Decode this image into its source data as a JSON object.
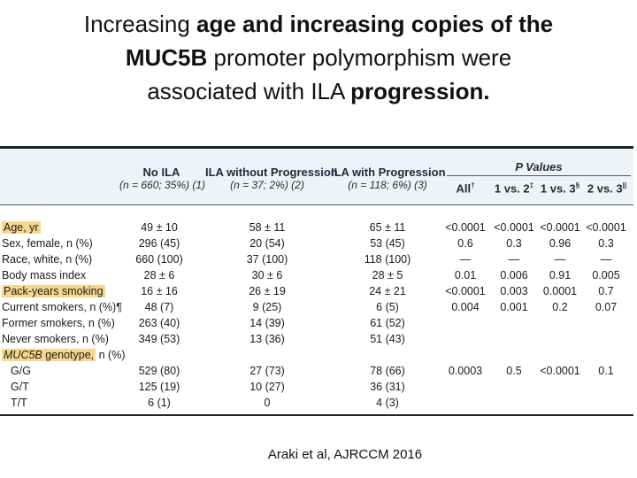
{
  "title": {
    "line1_pre": "Increasing ",
    "line1_bold": "age and increasing copies of the",
    "line2_bold": "MUC5B",
    "line2_post": " promoter polymorphism were",
    "line3_pre": "associated with ILA ",
    "line3_bold": "progression."
  },
  "table": {
    "headers": {
      "col1": "No ILA",
      "col1_sub": "(n = 660; 35%) (1)",
      "col2": "ILA without Progression",
      "col2_sub": "(n = 37; 2%) (2)",
      "col3": "ILA with Progression",
      "col3_sub": "(n = 118; 6%) (3)",
      "pvalues": "P Values",
      "p_all": "All",
      "p_all_mark": "†",
      "p_1v2": "1 vs. 2",
      "p_1v2_mark": "‡",
      "p_1v3": "1 vs. 3",
      "p_1v3_mark": "§",
      "p_2v3": "2 vs. 3",
      "p_2v3_mark": "||"
    },
    "rows": [
      {
        "label": "Age, yr",
        "c1": "49 ± 10",
        "c2": "58 ± 11",
        "c3": "65 ± 11",
        "p_all": "<0.0001",
        "p12": "<0.0001",
        "p13": "<0.0001",
        "p23": "<0.0001"
      },
      {
        "label": "Sex, female, n (%)",
        "c1": "296 (45)",
        "c2": "20 (54)",
        "c3": "53 (45)",
        "p_all": "0.6",
        "p12": "0.3",
        "p13": "0.96",
        "p23": "0.3"
      },
      {
        "label": "Race, white, n (%)",
        "c1": "660 (100)",
        "c2": "37 (100)",
        "c3": "118 (100)",
        "p_all": "—",
        "p12": "—",
        "p13": "—",
        "p23": "—"
      },
      {
        "label": "Body mass index",
        "c1": "28 ± 6",
        "c2": "30 ± 6",
        "c3": "28 ± 5",
        "p_all": "0.01",
        "p12": "0.006",
        "p13": "0.91",
        "p23": "0.005"
      },
      {
        "label": "Pack-years smoking",
        "c1": "16 ± 16",
        "c2": "26 ± 19",
        "c3": "24 ± 21",
        "p_all": "<0.0001",
        "p12": "0.003",
        "p13": "0.0001",
        "p23": "0.7"
      },
      {
        "label": "Current smokers, n (%)¶",
        "c1": "48 (7)",
        "c2": "9 (25)",
        "c3": "6 (5)",
        "p_all": "0.004",
        "p12": "0.001",
        "p13": "0.2",
        "p23": "0.07"
      },
      {
        "label": "Former smokers, n (%)",
        "c1": "263 (40)",
        "c2": "14 (39)",
        "c3": "61 (52)",
        "p_all": "",
        "p12": "",
        "p13": "",
        "p23": ""
      },
      {
        "label": "Never smokers, n (%)",
        "c1": "349 (53)",
        "c2": "13 (36)",
        "c3": "51 (43)",
        "p_all": "",
        "p12": "",
        "p13": "",
        "p23": ""
      },
      {
        "label_italic": "MUC5B",
        "label_rest_hl": " genotype,",
        "label_rest": " n (%)",
        "c1": "",
        "c2": "",
        "c3": "",
        "p_all": "",
        "p12": "",
        "p13": "",
        "p23": ""
      },
      {
        "label": "G/G",
        "c1": "529 (80)",
        "c2": "27 (73)",
        "c3": "78 (66)",
        "p_all": "0.0003",
        "p12": "0.5",
        "p13": "<0.0001",
        "p23": "0.1"
      },
      {
        "label": "G/T",
        "c1": "125 (19)",
        "c2": "10 (27)",
        "c3": "36 (31)",
        "p_all": "",
        "p12": "",
        "p13": "",
        "p23": ""
      },
      {
        "label": "T/T",
        "c1": "6 (1)",
        "c2": "0",
        "c3": "4 (3)",
        "p_all": "",
        "p12": "",
        "p13": "",
        "p23": ""
      }
    ]
  },
  "citation": "Araki et al, AJRCCM 2016",
  "colors": {
    "highlight": "#f9d78a",
    "header_band": "#eef3f7"
  }
}
